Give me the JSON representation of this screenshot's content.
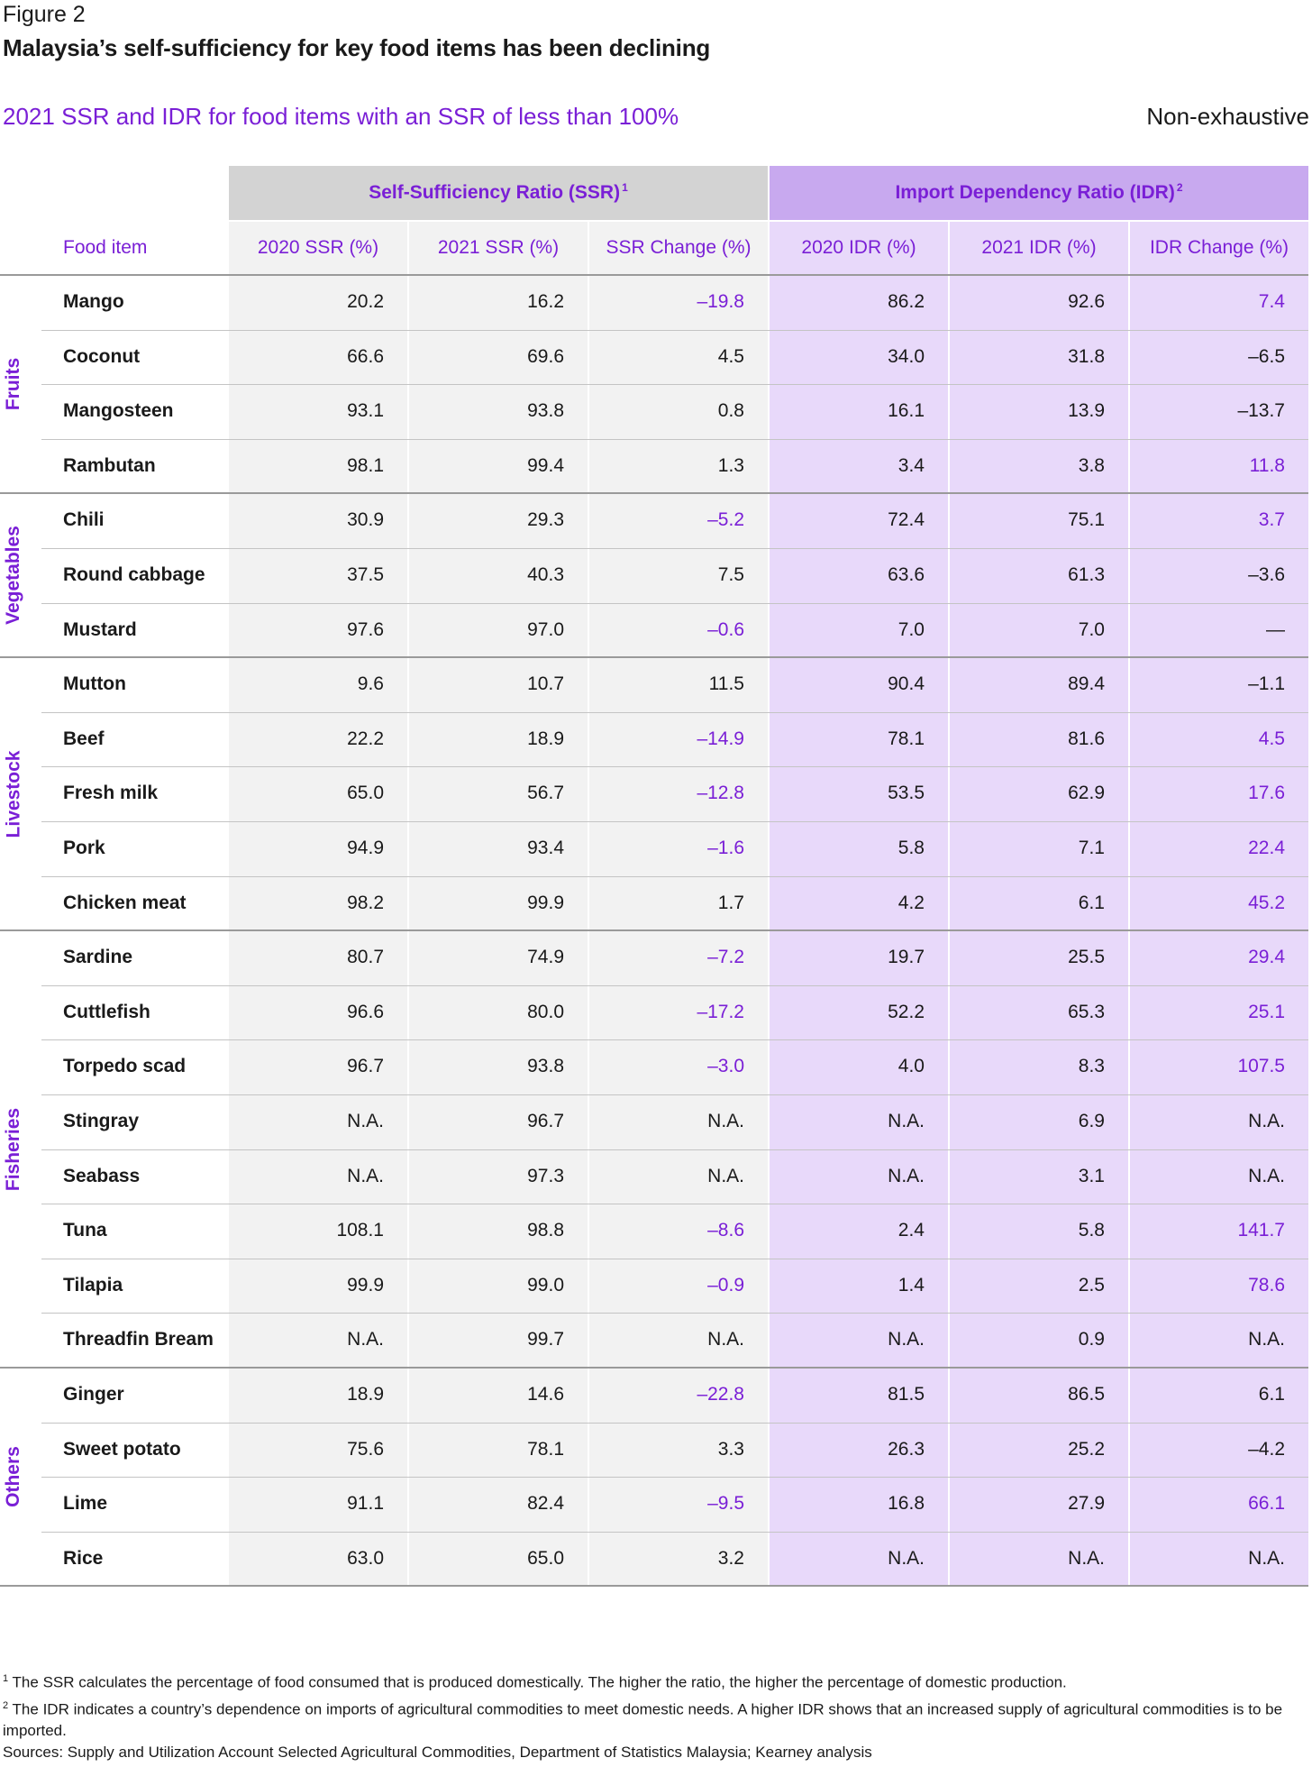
{
  "figure_label": "Figure 2",
  "title": "Malaysia’s self-sufficiency for key food items has been declining",
  "subtitle": "2021 SSR and IDR for food items with an SSR of less than 100%",
  "note": "Non-exhaustive",
  "colors": {
    "accent": "#7a1fd6",
    "ssr_bg": "#f2f2f2",
    "idr_bg": "#e8d9fa",
    "ssr_header": "#d3d3d3",
    "idr_header": "#c8a9ef"
  },
  "chart_data": {
    "type": "table",
    "group_headers": {
      "ssr": "Self-Sufficiency Ratio (SSR)",
      "ssr_sup": "1",
      "idr": "Import Dependency Ratio (IDR)",
      "idr_sup": "2"
    },
    "columns": [
      "Food item",
      "2020 SSR (%)",
      "2021 SSR (%)",
      "SSR Change (%)",
      "2020 IDR (%)",
      "2021 IDR (%)",
      "IDR Change (%)"
    ],
    "categories": [
      {
        "name": "Fruits",
        "rows": [
          [
            "Mango",
            "20.2",
            "16.2",
            "–19.8",
            "86.2",
            "92.6",
            "7.4"
          ],
          [
            "Coconut",
            "66.6",
            "69.6",
            "4.5",
            "34.0",
            "31.8",
            "–6.5"
          ],
          [
            "Mangosteen",
            "93.1",
            "93.8",
            "0.8",
            "16.1",
            "13.9",
            "–13.7"
          ],
          [
            "Rambutan",
            "98.1",
            "99.4",
            "1.3",
            "3.4",
            "3.8",
            "11.8"
          ]
        ]
      },
      {
        "name": "Vegetables",
        "rows": [
          [
            "Chili",
            "30.9",
            "29.3",
            "–5.2",
            "72.4",
            "75.1",
            "3.7"
          ],
          [
            "Round cabbage",
            "37.5",
            "40.3",
            "7.5",
            "63.6",
            "61.3",
            "–3.6"
          ],
          [
            "Mustard",
            "97.6",
            "97.0",
            "–0.6",
            "7.0",
            "7.0",
            "—"
          ]
        ]
      },
      {
        "name": "Livestock",
        "rows": [
          [
            "Mutton",
            "9.6",
            "10.7",
            "11.5",
            "90.4",
            "89.4",
            "–1.1"
          ],
          [
            "Beef",
            "22.2",
            "18.9",
            "–14.9",
            "78.1",
            "81.6",
            "4.5"
          ],
          [
            "Fresh milk",
            "65.0",
            "56.7",
            "–12.8",
            "53.5",
            "62.9",
            "17.6"
          ],
          [
            "Pork",
            "94.9",
            "93.4",
            "–1.6",
            "5.8",
            "7.1",
            "22.4"
          ],
          [
            "Chicken meat",
            "98.2",
            "99.9",
            "1.7",
            "4.2",
            "6.1",
            "45.2"
          ]
        ]
      },
      {
        "name": "Fisheries",
        "rows": [
          [
            "Sardine",
            "80.7",
            "74.9",
            "–7.2",
            "19.7",
            "25.5",
            "29.4"
          ],
          [
            "Cuttlefish",
            "96.6",
            "80.0",
            "–17.2",
            "52.2",
            "65.3",
            "25.1"
          ],
          [
            "Torpedo scad",
            "96.7",
            "93.8",
            "–3.0",
            "4.0",
            "8.3",
            "107.5"
          ],
          [
            "Stingray",
            "N.A.",
            "96.7",
            "N.A.",
            "N.A.",
            "6.9",
            "N.A."
          ],
          [
            "Seabass",
            "N.A.",
            "97.3",
            "N.A.",
            "N.A.",
            "3.1",
            "N.A."
          ],
          [
            "Tuna",
            "108.1",
            "98.8",
            "–8.6",
            "2.4",
            "5.8",
            "141.7"
          ],
          [
            "Tilapia",
            "99.9",
            "99.0",
            "–0.9",
            "1.4",
            "2.5",
            "78.6"
          ],
          [
            "Threadfin Bream",
            "N.A.",
            "99.7",
            "N.A.",
            "N.A.",
            "0.9",
            "N.A."
          ]
        ]
      },
      {
        "name": "Others",
        "rows": [
          [
            "Ginger",
            "18.9",
            "14.6",
            "–22.8",
            "81.5",
            "86.5",
            "6.1"
          ],
          [
            "Sweet potato",
            "75.6",
            "78.1",
            "3.3",
            "26.3",
            "25.2",
            "–4.2"
          ],
          [
            "Lime",
            "91.1",
            "82.4",
            "–9.5",
            "16.8",
            "27.9",
            "66.1"
          ],
          [
            "Rice",
            "63.0",
            "65.0",
            "3.2",
            "N.A.",
            "N.A.",
            "N.A."
          ]
        ]
      }
    ],
    "highlight": {
      "ssr_change": [
        "–19.8",
        "–5.2",
        "–0.6",
        "–14.9",
        "–12.8",
        "–1.6",
        "–7.2",
        "–17.2",
        "–3.0",
        "–8.6",
        "–0.9",
        "–22.8",
        "–9.5"
      ],
      "idr_change": [
        "7.4",
        "11.8",
        "3.7",
        "4.5",
        "17.6",
        "22.4",
        "45.2",
        "29.4",
        "25.1",
        "107.5",
        "141.7",
        "78.6",
        "66.1"
      ]
    }
  },
  "footnotes": [
    {
      "sup": "1",
      "text": "The SSR calculates the percentage of food consumed that is produced domestically. The higher the ratio, the higher the percentage of domestic production."
    },
    {
      "sup": "2",
      "text": "The IDR indicates a country’s dependence on imports of agricultural commodities to meet domestic needs. A higher IDR shows that an increased supply of agricultural commodities is to be imported."
    }
  ],
  "sources": "Sources: Supply and Utilization Account Selected Agricultural Commodities, Department of Statistics Malaysia; Kearney analysis"
}
